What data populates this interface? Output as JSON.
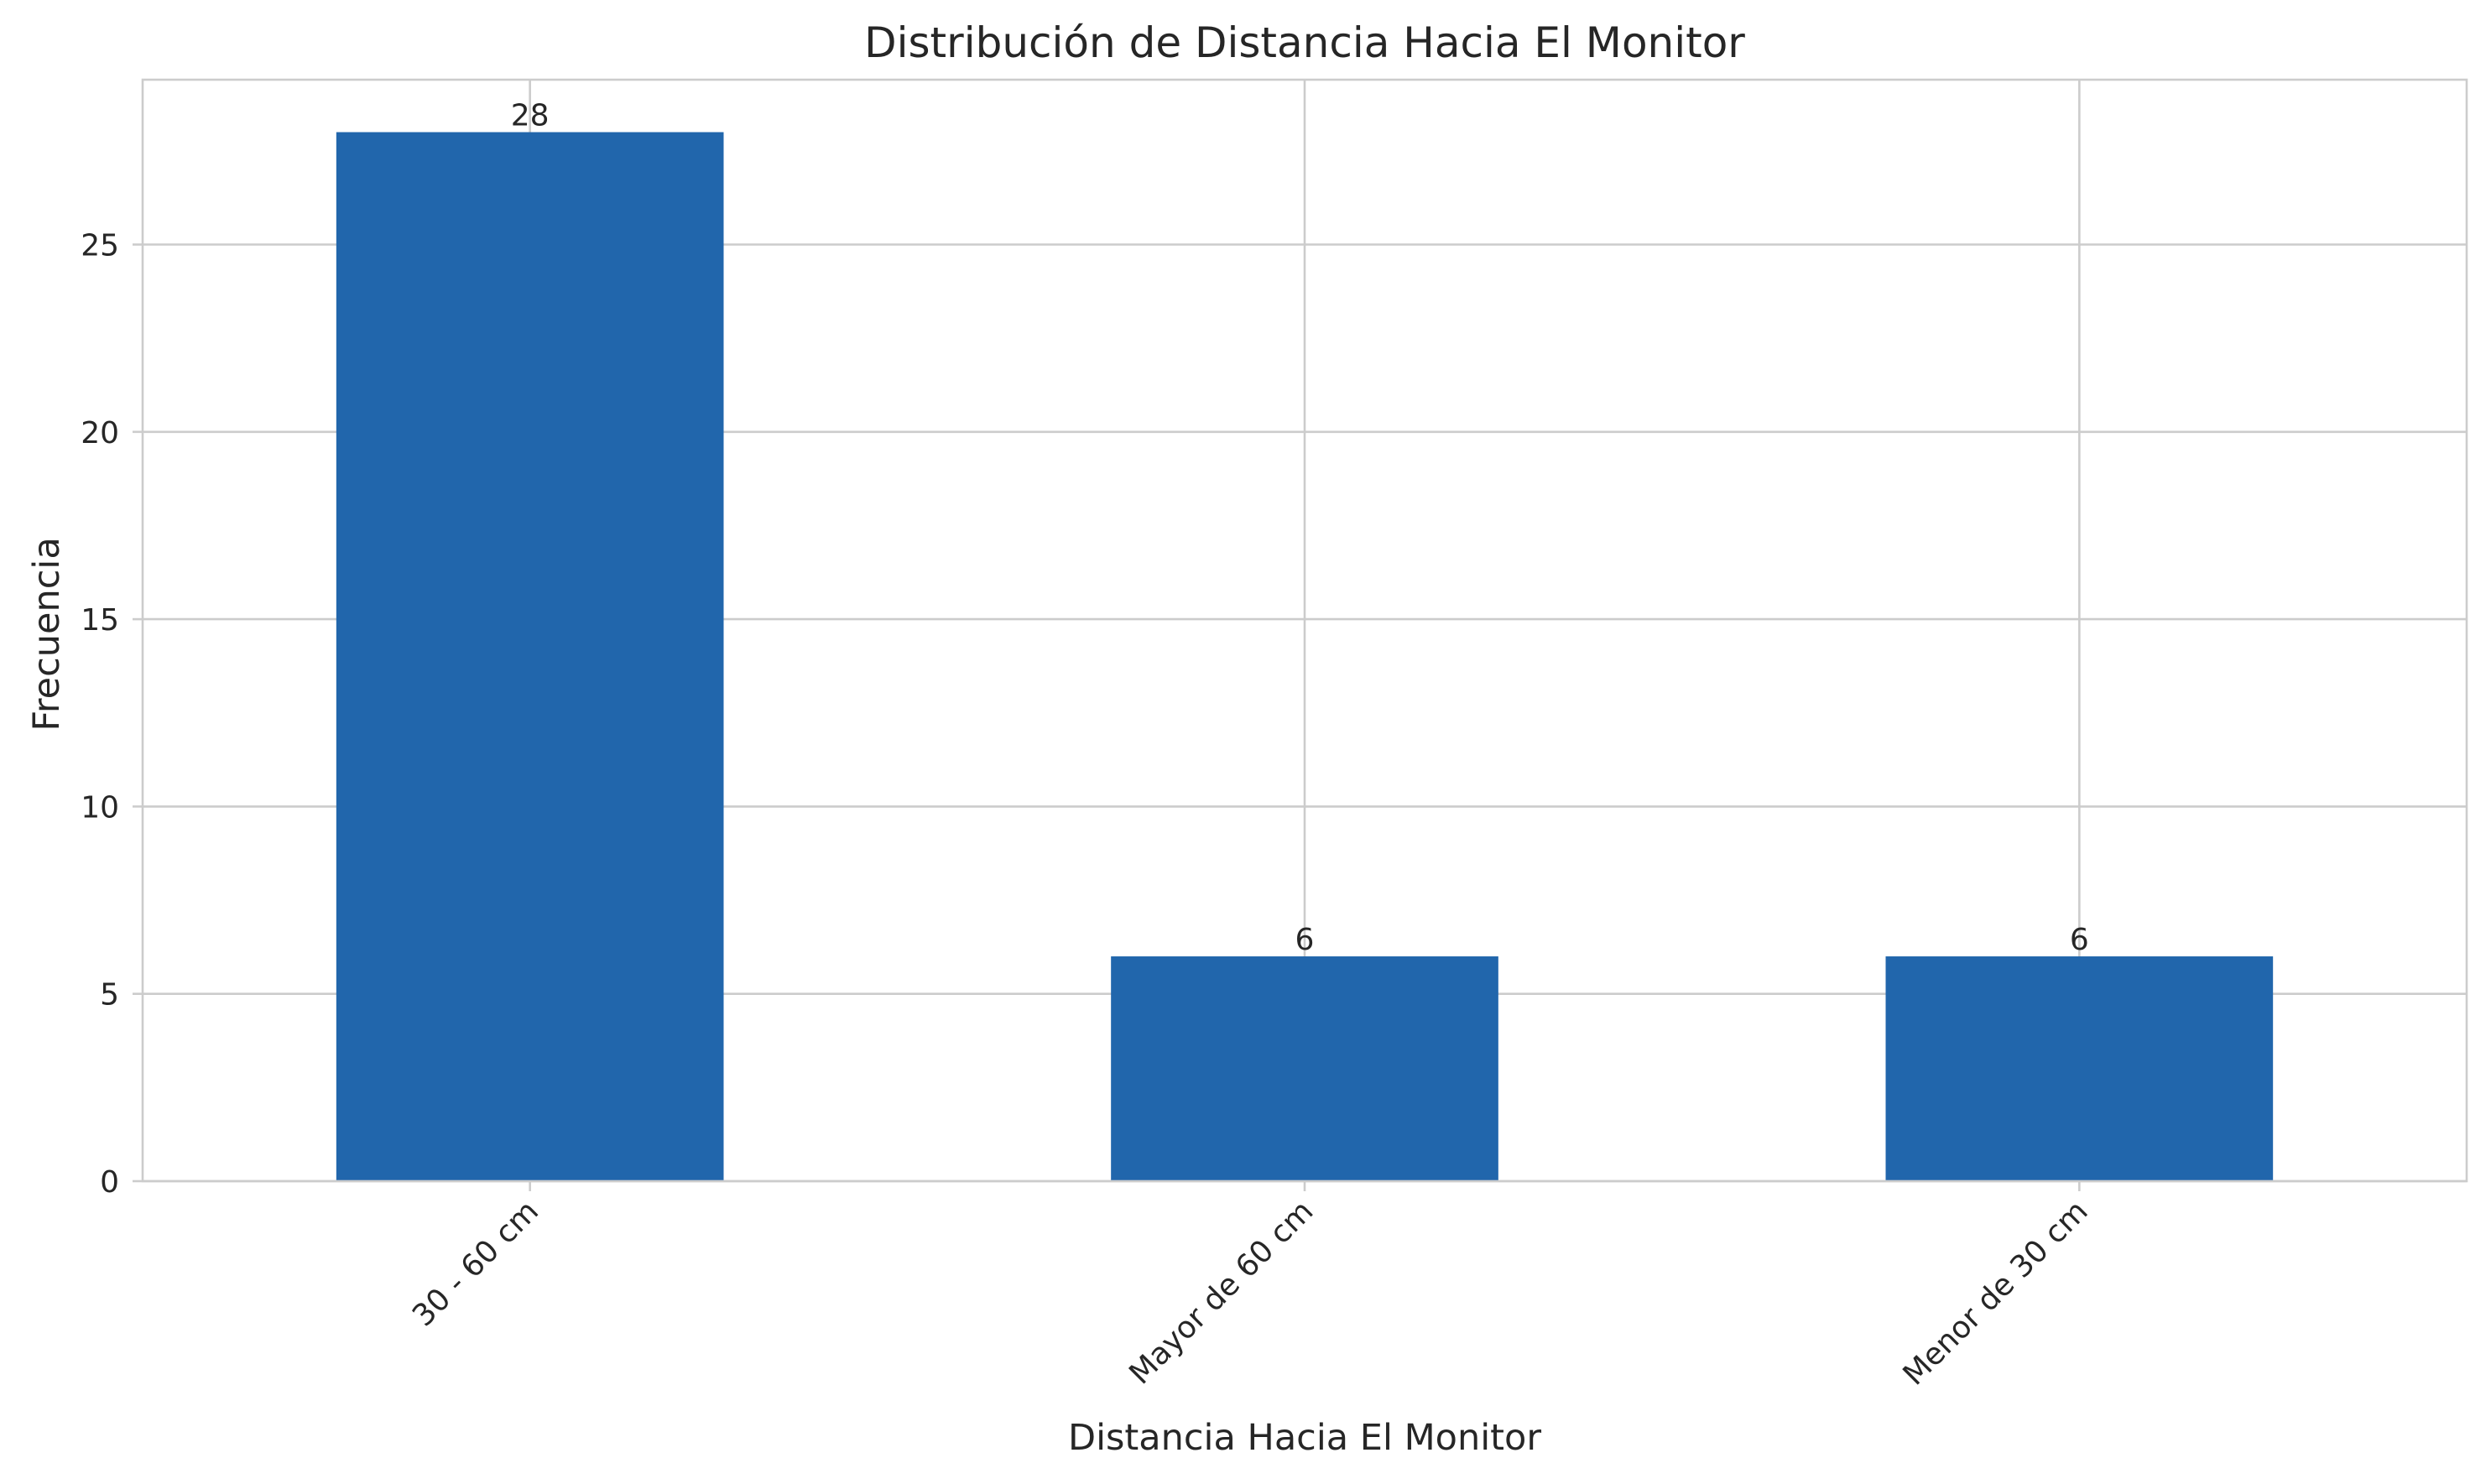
{
  "chart_data": {
    "type": "bar",
    "title": "Distribución de Distancia Hacia El Monitor",
    "xlabel": "Distancia Hacia El Monitor",
    "ylabel": "Frecuencia",
    "categories": [
      "30 - 60 cm",
      "Mayor de 60 cm",
      "Menor de 30 cm"
    ],
    "values": [
      28,
      6,
      6
    ],
    "data_labels": [
      "28",
      "6",
      "6"
    ],
    "y_ticks": [
      0,
      5,
      10,
      15,
      20,
      25
    ],
    "ylim": [
      0,
      29.4
    ],
    "grid": true,
    "legend": "none",
    "bar_color": "#2166ac",
    "x_tick_rotation": -45
  }
}
